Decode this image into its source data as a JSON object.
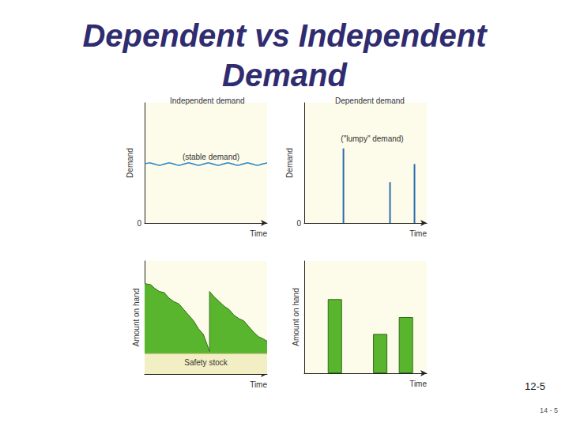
{
  "title": "Dependent vs Independent Demand",
  "slide_numbers": [
    "12-5",
    "14 - 5"
  ],
  "chart_data": [
    {
      "type": "line",
      "title": "Independent demand",
      "annotation": "(stable demand)",
      "xlabel": "Time",
      "ylabel": "Demand",
      "color": "#1f7fc4",
      "x": [
        0,
        4,
        8,
        12,
        16,
        20,
        24,
        28,
        32,
        36,
        40,
        44,
        48,
        52,
        56,
        60,
        64,
        68,
        72,
        76,
        80,
        84,
        88,
        92,
        96,
        100
      ],
      "values": [
        49,
        50,
        49,
        48,
        49,
        50,
        49,
        48,
        49,
        50,
        49,
        48,
        49,
        50,
        49,
        48,
        49,
        50,
        49,
        48,
        49,
        50,
        49,
        48,
        49,
        50
      ],
      "xlim": [
        0,
        100
      ],
      "ylim": [
        0,
        100
      ],
      "yticks": [
        0
      ],
      "tick_labels": "y"
    },
    {
      "type": "bar",
      "title": "Dependent demand",
      "annotation": "(\"lumpy\" demand)",
      "xlabel": "Time",
      "ylabel": "Demand",
      "color": "#2a6fb0",
      "x": [
        32,
        70,
        90
      ],
      "values": [
        62,
        34,
        49
      ],
      "xlim": [
        0,
        100
      ],
      "ylim": [
        0,
        100
      ],
      "yticks": [
        0
      ],
      "tick_labels": "y"
    },
    {
      "type": "area",
      "xlabel": "Time",
      "ylabel": "Amount on hand",
      "color": "#5ab52e",
      "x": [
        0,
        5,
        8,
        12,
        16,
        20,
        24,
        28,
        32,
        36,
        40,
        44,
        48,
        51,
        53,
        53,
        57,
        61,
        65,
        69,
        73,
        77,
        81,
        85,
        89,
        93,
        97,
        100
      ],
      "values": [
        80,
        79,
        76,
        73,
        72,
        67,
        64,
        62,
        57,
        52,
        47,
        40,
        35,
        26,
        20,
        73,
        68,
        64,
        60,
        57,
        52,
        49,
        47,
        42,
        37,
        33,
        31,
        29
      ],
      "safety_stock": {
        "label": "Safety stock",
        "value": 18
      },
      "xlim": [
        0,
        100
      ],
      "ylim": [
        0,
        100
      ],
      "tick_labels": false
    },
    {
      "type": "bar",
      "xlabel": "Time",
      "ylabel": "Amount on hand",
      "color": "#5ab52e",
      "x": [
        25,
        62,
        83
      ],
      "values": [
        66,
        35,
        50
      ],
      "xlim": [
        0,
        100
      ],
      "ylim": [
        0,
        100
      ],
      "tick_labels": false
    }
  ]
}
